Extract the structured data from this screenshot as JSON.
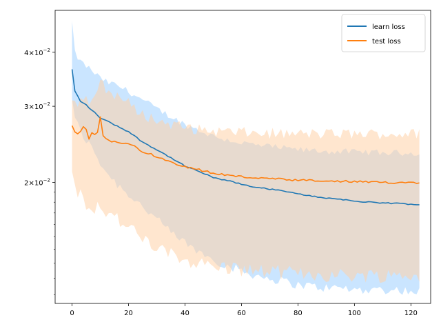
{
  "chart_data": {
    "type": "line",
    "title": "",
    "xlabel": "",
    "ylabel": "",
    "xlim": [
      -6,
      127
    ],
    "ylim": [
      0.0105,
      0.05
    ],
    "yscale": "log",
    "grid": false,
    "legend_position": "top-right",
    "x_ticks": [
      0,
      20,
      40,
      60,
      80,
      100,
      120
    ],
    "x_tick_labels": [
      "0",
      "20",
      "40",
      "60",
      "80",
      "100",
      "120"
    ],
    "y_ticks": [
      0.02,
      0.03,
      0.04
    ],
    "y_tick_labels": [
      {
        "mantissa": "2",
        "base": "10",
        "exp": "−2"
      },
      {
        "mantissa": "3",
        "base": "10",
        "exp": "−2"
      },
      {
        "mantissa": "4",
        "base": "10",
        "exp": "−2"
      }
    ],
    "x_start": 0,
    "x_end": 123,
    "series": [
      {
        "name": "learn loss",
        "color": "#1f77b4",
        "band_color": "#9ecfff",
        "x": [
          0,
          1,
          3,
          5,
          8,
          10,
          12,
          16,
          20,
          25,
          30,
          35,
          40,
          45,
          50,
          55,
          60,
          65,
          70,
          75,
          80,
          85,
          90,
          95,
          100,
          105,
          110,
          115,
          120,
          123
        ],
        "mean": [
          0.0365,
          0.0325,
          0.0308,
          0.0302,
          0.029,
          0.0282,
          0.0278,
          0.027,
          0.0262,
          0.0248,
          0.0238,
          0.0228,
          0.0218,
          0.0212,
          0.0205,
          0.0202,
          0.0198,
          0.0195,
          0.0193,
          0.0191,
          0.0188,
          0.0186,
          0.0184,
          0.0183,
          0.0181,
          0.018,
          0.0179,
          0.0179,
          0.0178,
          0.0178
        ],
        "upper": [
          0.047,
          0.0398,
          0.038,
          0.0372,
          0.0358,
          0.0348,
          0.0342,
          0.0335,
          0.0325,
          0.031,
          0.0296,
          0.0284,
          0.0272,
          0.0264,
          0.0256,
          0.0251,
          0.0247,
          0.0244,
          0.0242,
          0.024,
          0.0238,
          0.0237,
          0.0236,
          0.0236,
          0.0235,
          0.0235,
          0.0234,
          0.0234,
          0.0234,
          0.0234
        ],
        "lower": [
          0.0315,
          0.028,
          0.0262,
          0.025,
          0.0235,
          0.0222,
          0.0212,
          0.0198,
          0.0188,
          0.0176,
          0.0164,
          0.0153,
          0.0145,
          0.0138,
          0.0133,
          0.0128,
          0.0125,
          0.0122,
          0.012,
          0.0118,
          0.0116,
          0.0115,
          0.0114,
          0.0114,
          0.0113,
          0.0113,
          0.0113,
          0.0113,
          0.0112,
          0.0112
        ]
      },
      {
        "name": "test loss",
        "color": "#ff7f0e",
        "band_color": "#ffd2a8",
        "x": [
          0,
          1,
          2,
          3,
          4,
          5,
          6,
          7,
          8,
          9,
          10,
          11,
          12,
          14,
          16,
          18,
          20,
          22,
          25,
          28,
          30,
          33,
          36,
          40,
          45,
          50,
          55,
          60,
          65,
          70,
          75,
          80,
          85,
          90,
          95,
          100,
          105,
          110,
          115,
          120,
          123
        ],
        "mean": [
          0.0272,
          0.0262,
          0.026,
          0.0262,
          0.027,
          0.0266,
          0.0252,
          0.0262,
          0.0258,
          0.0262,
          0.0282,
          0.0255,
          0.0253,
          0.0248,
          0.0248,
          0.0245,
          0.0246,
          0.0242,
          0.0236,
          0.0232,
          0.0228,
          0.0226,
          0.0222,
          0.0218,
          0.0214,
          0.021,
          0.0208,
          0.0206,
          0.0205,
          0.0204,
          0.0203,
          0.0202,
          0.0202,
          0.0201,
          0.0201,
          0.0201,
          0.02,
          0.02,
          0.02,
          0.02,
          0.02
        ],
        "upper": [
          0.031,
          0.0305,
          0.0308,
          0.031,
          0.0315,
          0.0312,
          0.0305,
          0.0312,
          0.031,
          0.0318,
          0.0355,
          0.0338,
          0.0325,
          0.0322,
          0.0318,
          0.0312,
          0.0305,
          0.0296,
          0.0288,
          0.0282,
          0.0278,
          0.0275,
          0.0272,
          0.0268,
          0.0265,
          0.0263,
          0.0262,
          0.0261,
          0.026,
          0.026,
          0.0259,
          0.0259,
          0.0259,
          0.0259,
          0.0259,
          0.0259,
          0.0259,
          0.0259,
          0.0259,
          0.0259,
          0.0259
        ],
        "lower": [
          0.0205,
          0.0195,
          0.019,
          0.0188,
          0.0185,
          0.018,
          0.0176,
          0.0178,
          0.0175,
          0.0176,
          0.0178,
          0.0173,
          0.0172,
          0.0168,
          0.0165,
          0.016,
          0.0158,
          0.0153,
          0.0148,
          0.0144,
          0.014,
          0.0138,
          0.0135,
          0.0133,
          0.013,
          0.0128,
          0.0127,
          0.0126,
          0.0125,
          0.0124,
          0.0124,
          0.0123,
          0.0123,
          0.0122,
          0.0122,
          0.0122,
          0.0122,
          0.0122,
          0.0122,
          0.0122,
          0.0122
        ]
      }
    ]
  }
}
